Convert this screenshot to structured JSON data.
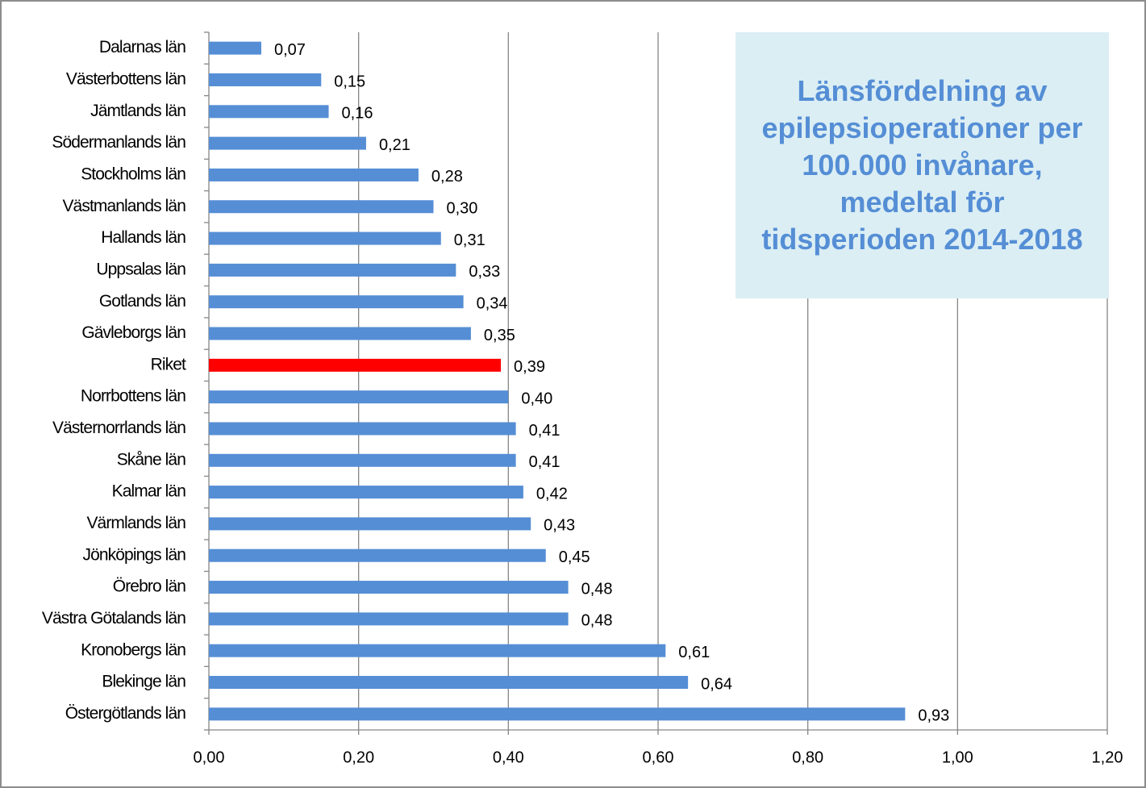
{
  "chart_data": {
    "type": "bar",
    "orientation": "horizontal",
    "title": "Länsfördelning av epilepsioperationer per 100.000 invånare, medeltal för tidsperioden 2014-2018",
    "categories": [
      "Dalarnas län",
      "Västerbottens län",
      "Jämtlands län",
      "Södermanlands län",
      "Stockholms län",
      "Västmanlands län",
      "Hallands län",
      "Uppsalas län",
      "Gotlands län",
      "Gävleborgs län",
      "Riket",
      "Norrbottens län",
      "Västernorrlands län",
      "Skåne län",
      "Kalmar län",
      "Värmlands län",
      "Jönköpings län",
      "Örebro län",
      "Västra Götalands län",
      "Kronobergs län",
      "Blekinge län",
      "Östergötlands län"
    ],
    "values": [
      0.07,
      0.15,
      0.16,
      0.21,
      0.28,
      0.3,
      0.31,
      0.33,
      0.34,
      0.35,
      0.39,
      0.4,
      0.41,
      0.41,
      0.42,
      0.43,
      0.45,
      0.48,
      0.48,
      0.61,
      0.64,
      0.93
    ],
    "value_labels": [
      "0,07",
      "0,15",
      "0,16",
      "0,21",
      "0,28",
      "0,30",
      "0,31",
      "0,33",
      "0,34",
      "0,35",
      "0,39",
      "0,40",
      "0,41",
      "0,41",
      "0,42",
      "0,43",
      "0,45",
      "0,48",
      "0,48",
      "0,61",
      "0,64",
      "0,93"
    ],
    "colors": [
      "#558ed5",
      "#558ed5",
      "#558ed5",
      "#558ed5",
      "#558ed5",
      "#558ed5",
      "#558ed5",
      "#558ed5",
      "#558ed5",
      "#558ed5",
      "#ff0000",
      "#558ed5",
      "#558ed5",
      "#558ed5",
      "#558ed5",
      "#558ed5",
      "#558ed5",
      "#558ed5",
      "#558ed5",
      "#558ed5",
      "#558ed5",
      "#558ed5"
    ],
    "xlim": [
      0,
      1.2
    ],
    "xticks": [
      {
        "value": 0,
        "label": "0,00"
      },
      {
        "value": 0.2,
        "label": "0,20"
      },
      {
        "value": 0.4,
        "label": "0,40"
      },
      {
        "value": 0.6,
        "label": "0,60"
      },
      {
        "value": 0.8,
        "label": "0,80"
      },
      {
        "value": 1.0,
        "label": "1,00"
      },
      {
        "value": 1.2,
        "label": "1,20"
      }
    ],
    "grid": true
  }
}
